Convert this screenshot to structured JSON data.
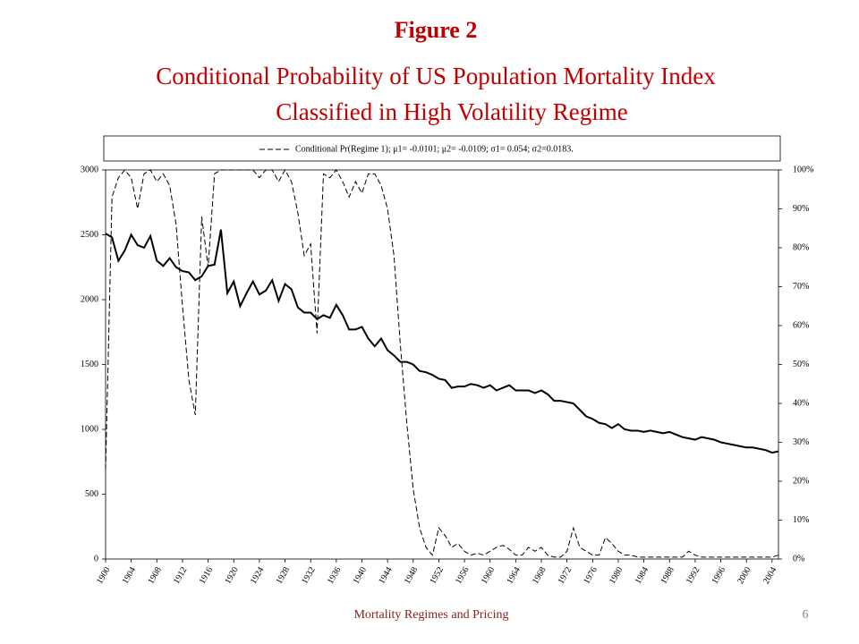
{
  "chart_data": {
    "type": "line",
    "title": "Figure 2",
    "subtitle": [
      "Conditional Probability of US Population Mortality Index",
      "Classified in High Volatility Regime"
    ],
    "footer": "Mortality Regimes and Pricing",
    "page_number": "6",
    "x": [
      1900,
      1901,
      1902,
      1903,
      1904,
      1905,
      1906,
      1907,
      1908,
      1909,
      1910,
      1911,
      1912,
      1913,
      1914,
      1915,
      1916,
      1917,
      1918,
      1919,
      1920,
      1921,
      1922,
      1923,
      1924,
      1925,
      1926,
      1927,
      1928,
      1929,
      1930,
      1931,
      1932,
      1933,
      1934,
      1935,
      1936,
      1937,
      1938,
      1939,
      1940,
      1941,
      1942,
      1943,
      1944,
      1945,
      1946,
      1947,
      1948,
      1949,
      1950,
      1951,
      1952,
      1953,
      1954,
      1955,
      1956,
      1957,
      1958,
      1959,
      1960,
      1961,
      1962,
      1963,
      1964,
      1965,
      1966,
      1967,
      1968,
      1969,
      1970,
      1971,
      1972,
      1973,
      1974,
      1975,
      1976,
      1977,
      1978,
      1979,
      1980,
      1981,
      1982,
      1983,
      1984,
      1985,
      1986,
      1987,
      1988,
      1989,
      1990,
      1991,
      1992,
      1993,
      1994,
      1995,
      1996,
      1997,
      1998,
      1999,
      2000,
      2001,
      2002,
      2003,
      2004,
      2005
    ],
    "series": [
      {
        "color": "#000000",
        "dashed": false,
        "values": [
          2510,
          2480,
          2300,
          2380,
          2500,
          2420,
          2400,
          2490,
          2300,
          2260,
          2320,
          2250,
          2220,
          2210,
          2150,
          2180,
          2260,
          2270,
          2540,
          2050,
          2140,
          1950,
          2050,
          2140,
          2040,
          2070,
          2150,
          1990,
          2120,
          2080,
          1940,
          1900,
          1900,
          1850,
          1880,
          1860,
          1960,
          1880,
          1770,
          1770,
          1790,
          1700,
          1640,
          1700,
          1610,
          1570,
          1520,
          1520,
          1500,
          1450,
          1440,
          1420,
          1390,
          1380,
          1320,
          1330,
          1330,
          1350,
          1340,
          1320,
          1340,
          1300,
          1320,
          1340,
          1300,
          1300,
          1300,
          1280,
          1300,
          1270,
          1220,
          1220,
          1210,
          1200,
          1150,
          1100,
          1080,
          1050,
          1040,
          1010,
          1040,
          1000,
          990,
          990,
          980,
          990,
          980,
          970,
          980,
          960,
          940,
          930,
          920,
          940,
          930,
          920,
          900,
          890,
          880,
          870,
          860,
          860,
          850,
          840,
          820,
          830
        ]
      },
      {
        "name": "Conditional  Pr(Regime 1); μ1= -0.0101; μ2= -0.0109; σ1= 0.054; σ2=0.0183.",
        "color": "#000000",
        "dashed": true,
        "axis": "y2",
        "values": [
          23,
          93,
          98,
          100,
          98,
          90,
          99,
          100,
          97,
          99,
          96,
          86,
          65,
          46,
          37,
          88,
          75,
          99,
          100,
          100,
          100,
          100,
          100,
          100,
          98,
          100,
          100,
          97,
          100,
          97,
          89,
          78,
          81,
          58,
          99,
          98,
          100,
          97,
          93,
          97,
          94,
          99,
          99,
          96,
          90,
          78,
          55,
          35,
          18,
          8,
          3,
          1,
          8,
          6,
          3,
          4,
          2,
          1,
          1.5,
          1,
          2,
          3,
          3.5,
          2.5,
          1,
          1,
          3,
          2,
          3,
          1,
          0.5,
          0.5,
          2,
          8,
          3,
          2,
          1,
          1,
          5.5,
          4,
          2,
          1,
          1,
          0.5,
          0.5,
          0.5,
          0.5,
          0.5,
          0.5,
          0.5,
          0.5,
          2,
          1,
          0.5,
          0.5,
          0.5,
          0.5,
          0.5,
          0.5,
          0.5,
          0.5,
          0.5,
          0.5,
          0.5,
          0.5,
          1
        ]
      }
    ],
    "xlim": [
      1900,
      2005
    ],
    "xticks": [
      1900,
      1904,
      1908,
      1912,
      1916,
      1920,
      1924,
      1928,
      1932,
      1936,
      1940,
      1944,
      1948,
      1952,
      1956,
      1960,
      1964,
      1968,
      1972,
      1976,
      1980,
      1984,
      1988,
      1992,
      1996,
      2000,
      2004
    ],
    "ylim": [
      0,
      3000
    ],
    "yticks": [
      0,
      500,
      1000,
      1500,
      2000,
      2500,
      3000
    ],
    "y2lim": [
      0,
      100
    ],
    "y2ticks": [
      {
        "value": 0,
        "label": "0%"
      },
      {
        "value": 10,
        "label": "10%"
      },
      {
        "value": 20,
        "label": "20%"
      },
      {
        "value": 30,
        "label": "30%"
      },
      {
        "value": 40,
        "label": "40%"
      },
      {
        "value": 50,
        "label": "50%"
      },
      {
        "value": 60,
        "label": "60%"
      },
      {
        "value": 70,
        "label": "70%"
      },
      {
        "value": 80,
        "label": "80%"
      },
      {
        "value": 90,
        "label": "90%"
      },
      {
        "value": 100,
        "label": "100%"
      }
    ],
    "grid": false,
    "legend": "top"
  }
}
